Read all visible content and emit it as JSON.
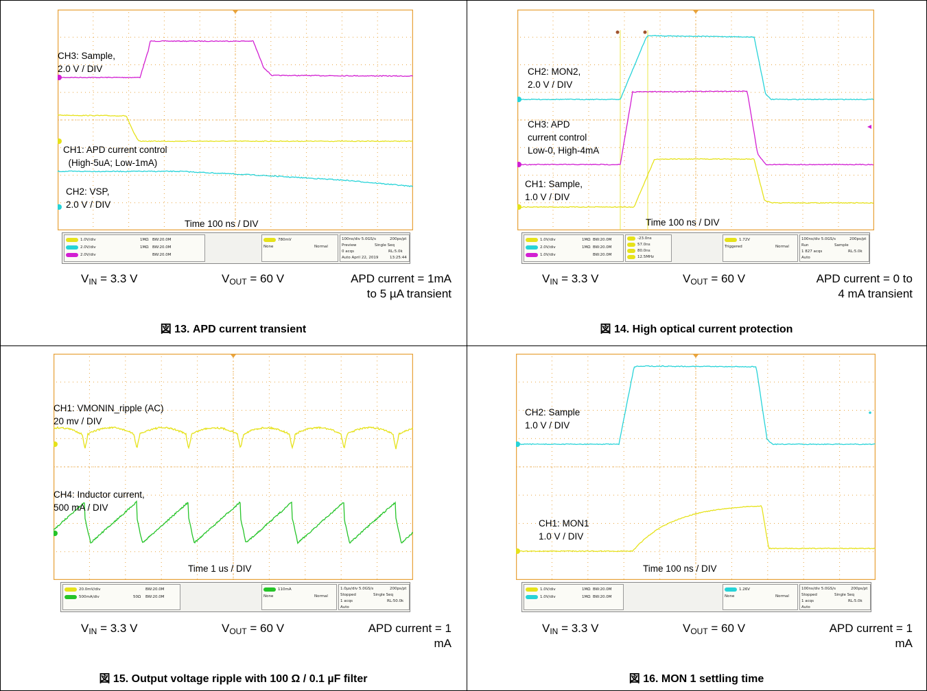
{
  "panels": [
    {
      "labels": [
        "CH3: Sample,\n2.0 V / DIV",
        "CH1: APD current control\n  (High-5uA; Low-1mA)",
        "CH2: VSP,\n2.0 V / DIV"
      ],
      "time": "Time 100 ns / DIV",
      "info": {
        "channels": [
          "1.0V/div",
          "2.0V/div",
          "2.0V/div"
        ],
        "imp": [
          "1MΩ",
          "1MΩ",
          ""
        ],
        "bw": [
          "BW:20.0M",
          "BW:20.0M",
          "BW:20.0M"
        ],
        "trigger": [
          "780mV",
          "None",
          "Normal"
        ],
        "acq": [
          "100ns/div  5.0GS/s",
          "200ps/pt",
          "Preview",
          "Single Seq",
          "0 acqs",
          "RL:5.0k",
          "Auto  April 22, 2019",
          "13:25:44"
        ]
      },
      "vin": "V",
      "vin_sub": "IN",
      "vin_val": " = 3.3 V",
      "vout": "V",
      "vout_sub": "OUT",
      "vout_val": " = 60 V",
      "current": "APD current = 1mA\nto 5 µA transient",
      "caption": "図 13. APD current transient"
    },
    {
      "labels": [
        "CH2: MON2,\n2.0 V / DIV",
        "CH3: APD\ncurrent control\nLow-0, High-4mA",
        "CH1: Sample,\n1.0 V / DIV"
      ],
      "time": "Time 100 ns / DIV",
      "info": {
        "channels": [
          "1.0V/div",
          "2.0V/div",
          "1.0V/div"
        ],
        "imp": [
          "1MΩ",
          "1MΩ",
          ""
        ],
        "bw": [
          "BW:20.0M",
          "BW:20.0M",
          "BW:20.0M"
        ],
        "cursors": [
          "-23.0ns",
          "57.0ns",
          "80.0ns",
          "12.5MHz"
        ],
        "trigger": [
          "1.72V",
          "Triggered",
          "Normal"
        ],
        "acq": [
          "100ns/div  5.0GS/s",
          "200ps/pt",
          "Run",
          "Sample",
          "1 827 acqs",
          "RL:5.0k",
          "Auto",
          ""
        ]
      },
      "vin": "V",
      "vin_sub": "IN",
      "vin_val": " = 3.3 V",
      "vout": "V",
      "vout_sub": "OUT",
      "vout_val": " = 60 V",
      "current": "APD current = 0 to\n4 mA transient",
      "caption": "図 14. High optical current protection"
    },
    {
      "labels": [
        "CH1: VMONIN_ripple (AC)\n20 mv / DIV",
        "CH4: Inductor current,\n500 mA / DIV"
      ],
      "time": "Time 1 us / DIV",
      "info": {
        "channels": [
          "20.0mV/div",
          "500mA/div"
        ],
        "imp": [
          "",
          "50Ω"
        ],
        "bw": [
          "BW:20.0M",
          "BW:20.0M"
        ],
        "trigger": [
          "110mA",
          "None",
          "Normal"
        ],
        "acq": [
          "1.0µs/div  5.0GS/s",
          "200ps/pt",
          "Stopped",
          "Single Seq",
          "1 acqs",
          "RL:50.0k",
          "Auto",
          ""
        ]
      },
      "vin": "V",
      "vin_sub": "IN",
      "vin_val": " = 3.3 V",
      "vout": "V",
      "vout_sub": "OUT",
      "vout_val": " = 60 V",
      "current": "APD current = 1\nmA",
      "caption": "図 15. Output voltage ripple with 100 Ω / 0.1 µF filter"
    },
    {
      "labels": [
        "CH2: Sample\n1.0 V / DIV",
        "CH1: MON1\n1.0 V / DIV"
      ],
      "time": "Time 100 ns / DIV",
      "info": {
        "channels": [
          "1.0V/div",
          "1.0V/div"
        ],
        "imp": [
          "1MΩ",
          "1MΩ"
        ],
        "bw": [
          "BW:20.0M",
          "BW:20.0M"
        ],
        "trigger": [
          "1.26V",
          "None",
          "Normal"
        ],
        "acq": [
          "100ns/div  5.0GS/s",
          "200ps/pt",
          "Stopped",
          "Single Seq",
          "1 acqs",
          "RL:5.0k",
          "Auto",
          ""
        ]
      },
      "vin": "V",
      "vin_sub": "IN",
      "vin_val": " = 3.3 V",
      "vout": "V",
      "vout_sub": "OUT",
      "vout_val": " = 60 V",
      "current": "APD current = 1\nmA",
      "caption": "図 16. MON 1 settling time"
    }
  ],
  "colors": {
    "grid": "#e8a33c",
    "yellow": "#e6e21a",
    "cyan": "#26d3d8",
    "magenta": "#d21fd2",
    "green": "#25c428"
  }
}
